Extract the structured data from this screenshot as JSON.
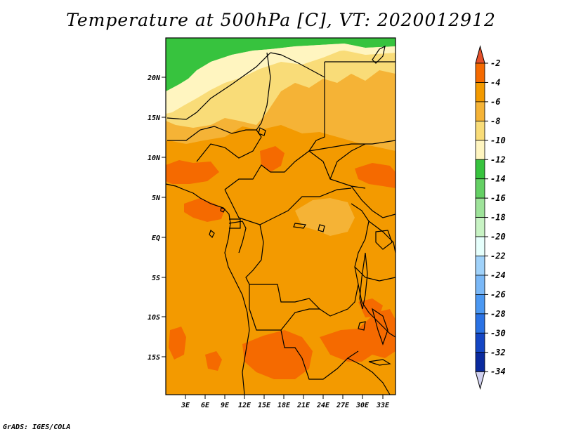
{
  "title": "Temperature at 500hPa [C], VT: 2020012912",
  "credit": "GrADS: IGES/COLA",
  "lat_labels": [
    "20N",
    "15N",
    "10N",
    "5N",
    "EQ",
    "5S",
    "10S",
    "15S"
  ],
  "lon_labels": [
    "3E",
    "6E",
    "9E",
    "12E",
    "15E",
    "18E",
    "21E",
    "24E",
    "27E",
    "30E",
    "33E"
  ],
  "colorbar": {
    "labels": [
      "-2",
      "-4",
      "-6",
      "-8",
      "-10",
      "-12",
      "-14",
      "-16",
      "-18",
      "-20",
      "-22",
      "-24",
      "-26",
      "-28",
      "-30",
      "-32",
      "-34"
    ],
    "colors": [
      "#f0461e",
      "#f56a00",
      "#f39a00",
      "#f5b336",
      "#f9dc78",
      "#fff5c0",
      "#37c33e",
      "#64d064",
      "#9ee39a",
      "#c8f3c4",
      "#e6fffc",
      "#a0d2fa",
      "#7ab8f7",
      "#4b98f2",
      "#2a72e4",
      "#1446c4",
      "#0a2a9e",
      "#061a78"
    ],
    "over_color": "#e4502a",
    "under_color": "#d2d2f0"
  },
  "chart_data": {
    "type": "heatmap",
    "title": "Temperature at 500hPa [C], VT: 2020012912",
    "units": "C",
    "x_range_deg_east": [
      0,
      35
    ],
    "y_range_deg": [
      -20,
      25
    ],
    "levels": [
      -34,
      -32,
      -30,
      -28,
      -26,
      -24,
      -22,
      -20,
      -18,
      -16,
      -14,
      -12,
      -10,
      -8,
      -6,
      -4,
      -2
    ],
    "dominant_value_range": [
      -14,
      -2
    ]
  }
}
